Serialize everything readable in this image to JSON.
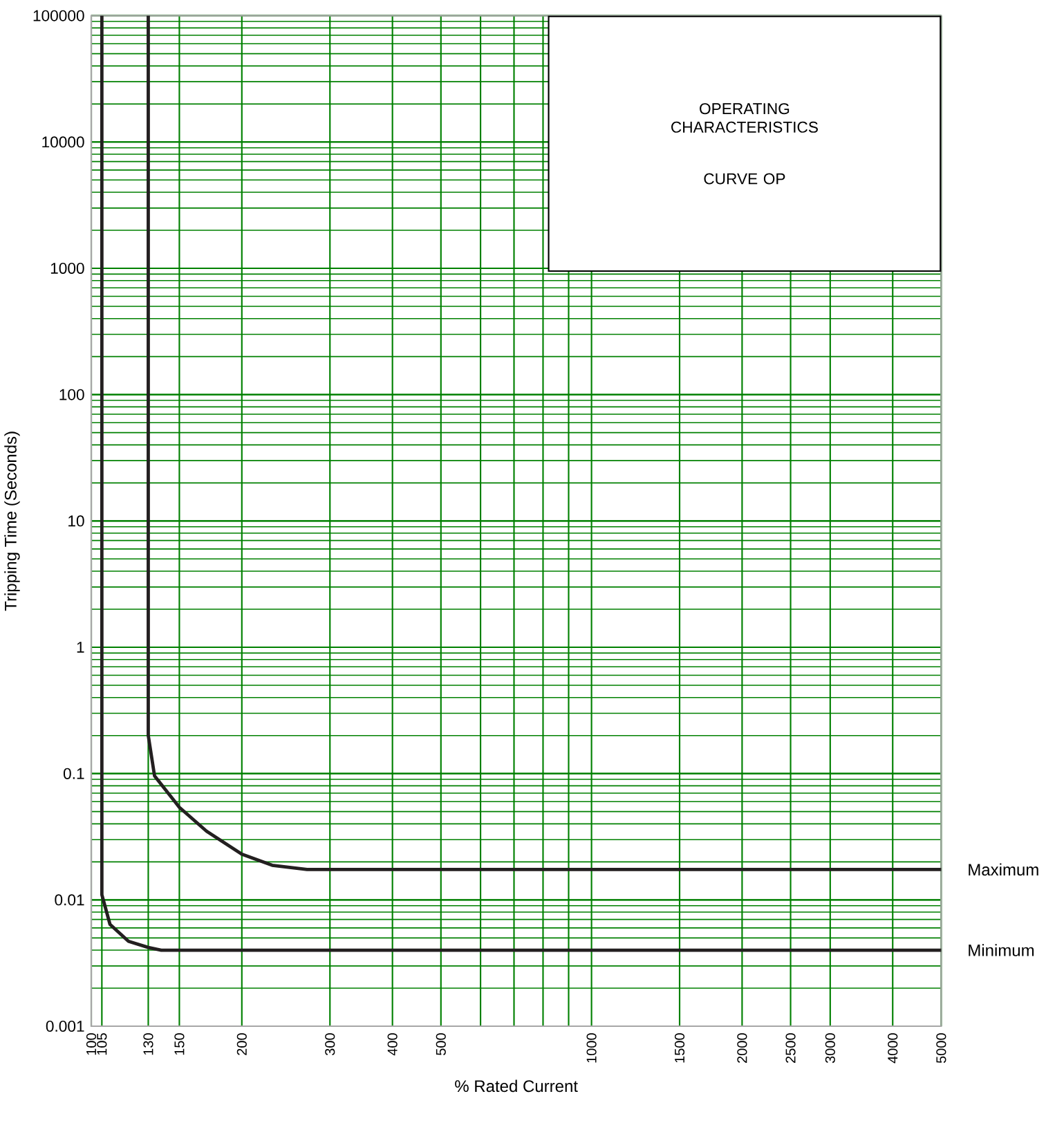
{
  "chart_data": {
    "type": "line",
    "xlabel": "% Rated Current",
    "ylabel": "Tripping Time (Seconds)",
    "annotations": [
      "OPERATING CHARACTERISTICS",
      "CURVE OP"
    ],
    "log": "xy",
    "grid": true,
    "marker": "none",
    "line_style": "solid",
    "xlim": [
      100,
      5000
    ],
    "ylim": [
      0.001,
      100000
    ],
    "xticks": [
      100,
      105,
      130,
      150,
      200,
      300,
      400,
      500,
      {
        "value": 600,
        "label": null
      },
      {
        "value": 700,
        "label": null
      },
      {
        "value": 800,
        "label": null
      },
      {
        "value": 900,
        "label": null
      },
      1000,
      1500,
      2000,
      2500,
      3000,
      4000,
      5000
    ],
    "yticks": [
      0.001,
      0.01,
      0.1,
      1,
      10,
      100,
      1000,
      10000,
      100000
    ],
    "series": [
      {
        "name": "Maximum",
        "color": "#231f20",
        "x": [
          130,
          130,
          133.8,
          150,
          170,
          200,
          230,
          270,
          300,
          5000
        ],
        "values": [
          100000,
          0.2,
          0.096,
          0.054,
          0.035,
          0.023,
          0.0188,
          0.0174,
          0.0174,
          0.0174
        ]
      },
      {
        "name": "Minimum",
        "color": "#231f20",
        "x": [
          105,
          105,
          109,
          118.7,
          130,
          138,
          5000
        ],
        "values": [
          100000,
          0.011,
          0.0064,
          0.0047,
          0.0042,
          0.004,
          0.004
        ]
      }
    ]
  }
}
